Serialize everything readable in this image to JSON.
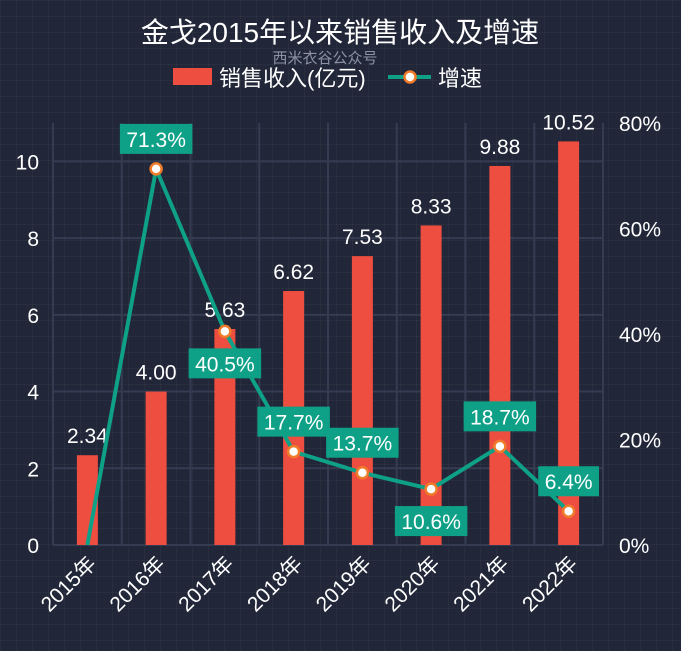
{
  "chart_data": {
    "type": "bar",
    "title": "金戈2015年以来销售收入及增速",
    "watermark": "西米衣谷公众号",
    "categories": [
      "2015年",
      "2016年",
      "2017年",
      "2018年",
      "2019年",
      "2020年",
      "2021年",
      "2022年"
    ],
    "series": [
      {
        "name": "销售收入(亿元)",
        "type": "bar",
        "axis": "left",
        "values": [
          2.34,
          4.0,
          5.63,
          6.62,
          7.53,
          8.33,
          9.88,
          10.52
        ],
        "labels": [
          "2.34",
          "4.00",
          "5.63",
          "6.62",
          "7.53",
          "8.33",
          "9.88",
          "10.52"
        ],
        "color": "#ee4e3f"
      },
      {
        "name": "增速",
        "type": "line",
        "axis": "right",
        "values": [
          0,
          71.3,
          40.5,
          17.7,
          13.7,
          10.6,
          18.7,
          6.4
        ],
        "labels": [
          "",
          "71.3%",
          "40.5%",
          "17.7%",
          "13.7%",
          "10.6%",
          "18.7%",
          "6.4%"
        ],
        "label_position": [
          "none",
          "above",
          "below",
          "above",
          "above",
          "below",
          "above",
          "above"
        ],
        "color": "#0fa188",
        "marker_fill": "#ffffff",
        "marker_stroke": "#f07b2a"
      }
    ],
    "y_left": {
      "min": 0,
      "max": 11,
      "ticks": [
        0,
        2,
        4,
        6,
        8,
        10
      ],
      "tick_labels": [
        "0",
        "2",
        "4",
        "6",
        "8",
        "10"
      ]
    },
    "y_right": {
      "min": 0,
      "max": 80,
      "ticks": [
        0,
        20,
        40,
        60,
        80
      ],
      "tick_labels": [
        "0%",
        "20%",
        "40%",
        "60%",
        "80%"
      ]
    },
    "xlabel": "",
    "ylabel": "",
    "grid": true,
    "legend": {
      "position": "top-center",
      "items": [
        "销售收入(亿元)",
        "增速"
      ]
    },
    "background": "#212638"
  }
}
